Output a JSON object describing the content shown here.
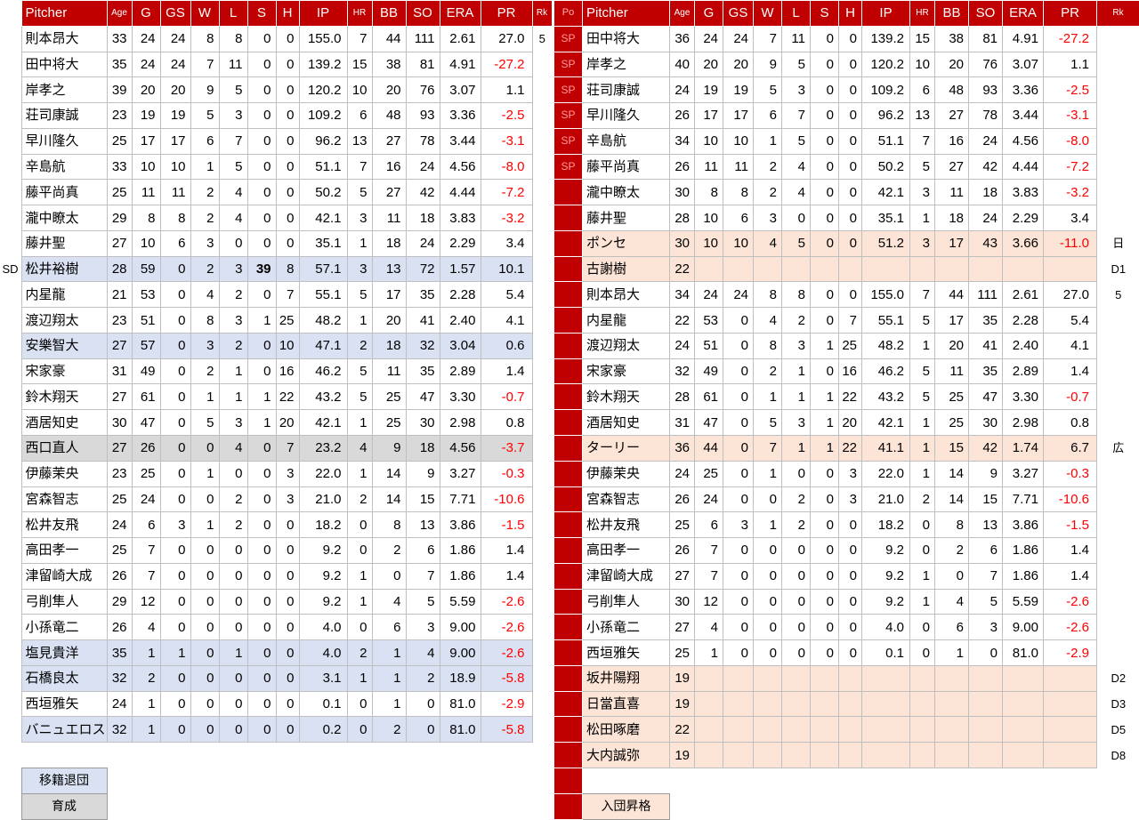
{
  "colors": {
    "header_bg": "#C00000",
    "header_text": "#FFFFFF",
    "po_text": "#FF9A9A",
    "transfer_bg": "#D9E1F2",
    "develop_bg": "#D9D9D9",
    "join_bg": "#FCE4D6",
    "negative": "#FF0000",
    "grid": "#BFBFBF"
  },
  "left_table": {
    "header": [
      "Pitcher",
      "Age",
      "G",
      "GS",
      "W",
      "L",
      "S",
      "H",
      "IP",
      "HR",
      "BB",
      "SO",
      "ERA",
      "PR"
    ],
    "rk_header": "Rk",
    "rows": [
      {
        "c": [
          "則本昂大",
          "33",
          "24",
          "24",
          "8",
          "8",
          "0",
          "0",
          "155.0",
          "7",
          "44",
          "111",
          "2.61",
          "27.0"
        ],
        "rk": "5"
      },
      {
        "c": [
          "田中将大",
          "35",
          "24",
          "24",
          "7",
          "11",
          "0",
          "0",
          "139.2",
          "15",
          "38",
          "81",
          "4.91",
          "-27.2"
        ]
      },
      {
        "c": [
          "岸孝之",
          "39",
          "20",
          "20",
          "9",
          "5",
          "0",
          "0",
          "120.2",
          "10",
          "20",
          "76",
          "3.07",
          "1.1"
        ]
      },
      {
        "c": [
          "荘司康誠",
          "23",
          "19",
          "19",
          "5",
          "3",
          "0",
          "0",
          "109.2",
          "6",
          "48",
          "93",
          "3.36",
          "-2.5"
        ]
      },
      {
        "c": [
          "早川隆久",
          "25",
          "17",
          "17",
          "6",
          "7",
          "0",
          "0",
          "96.2",
          "13",
          "27",
          "78",
          "3.44",
          "-3.1"
        ]
      },
      {
        "c": [
          "辛島航",
          "33",
          "10",
          "10",
          "1",
          "5",
          "0",
          "0",
          "51.1",
          "7",
          "16",
          "24",
          "4.56",
          "-8.0"
        ]
      },
      {
        "c": [
          "藤平尚真",
          "25",
          "11",
          "11",
          "2",
          "4",
          "0",
          "0",
          "50.2",
          "5",
          "27",
          "42",
          "4.44",
          "-7.2"
        ]
      },
      {
        "c": [
          "瀧中瞭太",
          "29",
          "8",
          "8",
          "2",
          "4",
          "0",
          "0",
          "42.1",
          "3",
          "11",
          "18",
          "3.83",
          "-3.2"
        ]
      },
      {
        "c": [
          "藤井聖",
          "27",
          "10",
          "6",
          "3",
          "0",
          "0",
          "0",
          "35.1",
          "1",
          "18",
          "24",
          "2.29",
          "3.4"
        ]
      },
      {
        "m": "SD",
        "hl": "t",
        "b": 6,
        "c": [
          "松井裕樹",
          "28",
          "59",
          "0",
          "2",
          "3",
          "39",
          "8",
          "57.1",
          "3",
          "13",
          "72",
          "1.57",
          "10.1"
        ]
      },
      {
        "c": [
          "内星龍",
          "21",
          "53",
          "0",
          "4",
          "2",
          "0",
          "7",
          "55.1",
          "5",
          "17",
          "35",
          "2.28",
          "5.4"
        ]
      },
      {
        "c": [
          "渡辺翔太",
          "23",
          "51",
          "0",
          "8",
          "3",
          "1",
          "25",
          "48.2",
          "1",
          "20",
          "41",
          "2.40",
          "4.1"
        ]
      },
      {
        "hl": "t",
        "c": [
          "安樂智大",
          "27",
          "57",
          "0",
          "3",
          "2",
          "0",
          "10",
          "47.1",
          "2",
          "18",
          "32",
          "3.04",
          "0.6"
        ]
      },
      {
        "c": [
          "宋家豪",
          "31",
          "49",
          "0",
          "2",
          "1",
          "0",
          "16",
          "46.2",
          "5",
          "11",
          "35",
          "2.89",
          "1.4"
        ]
      },
      {
        "c": [
          "鈴木翔天",
          "27",
          "61",
          "0",
          "1",
          "1",
          "1",
          "22",
          "43.2",
          "5",
          "25",
          "47",
          "3.30",
          "-0.7"
        ]
      },
      {
        "c": [
          "酒居知史",
          "30",
          "47",
          "0",
          "5",
          "3",
          "1",
          "20",
          "42.1",
          "1",
          "25",
          "30",
          "2.98",
          "0.8"
        ]
      },
      {
        "hl": "d",
        "c": [
          "西口直人",
          "27",
          "26",
          "0",
          "0",
          "4",
          "0",
          "7",
          "23.2",
          "4",
          "9",
          "18",
          "4.56",
          "-3.7"
        ]
      },
      {
        "c": [
          "伊藤茉央",
          "23",
          "25",
          "0",
          "1",
          "0",
          "0",
          "3",
          "22.0",
          "1",
          "14",
          "9",
          "3.27",
          "-0.3"
        ]
      },
      {
        "c": [
          "宮森智志",
          "25",
          "24",
          "0",
          "0",
          "2",
          "0",
          "3",
          "21.0",
          "2",
          "14",
          "15",
          "7.71",
          "-10.6"
        ]
      },
      {
        "c": [
          "松井友飛",
          "24",
          "6",
          "3",
          "1",
          "2",
          "0",
          "0",
          "18.2",
          "0",
          "8",
          "13",
          "3.86",
          "-1.5"
        ]
      },
      {
        "c": [
          "高田孝一",
          "25",
          "7",
          "0",
          "0",
          "0",
          "0",
          "0",
          "9.2",
          "0",
          "2",
          "6",
          "1.86",
          "1.4"
        ]
      },
      {
        "c": [
          "津留崎大成",
          "26",
          "7",
          "0",
          "0",
          "0",
          "0",
          "0",
          "9.2",
          "1",
          "0",
          "7",
          "1.86",
          "1.4"
        ]
      },
      {
        "c": [
          "弓削隼人",
          "29",
          "12",
          "0",
          "0",
          "0",
          "0",
          "0",
          "9.2",
          "1",
          "4",
          "5",
          "5.59",
          "-2.6"
        ]
      },
      {
        "c": [
          "小孫竜二",
          "26",
          "4",
          "0",
          "0",
          "0",
          "0",
          "0",
          "4.0",
          "0",
          "6",
          "3",
          "9.00",
          "-2.6"
        ]
      },
      {
        "hl": "t",
        "c": [
          "塩見貴洋",
          "35",
          "1",
          "1",
          "0",
          "1",
          "0",
          "0",
          "4.0",
          "2",
          "1",
          "4",
          "9.00",
          "-2.6"
        ]
      },
      {
        "hl": "t",
        "c": [
          "石橋良太",
          "32",
          "2",
          "0",
          "0",
          "0",
          "0",
          "0",
          "3.1",
          "1",
          "1",
          "2",
          "18.9",
          "-5.8"
        ]
      },
      {
        "c": [
          "西垣雅矢",
          "24",
          "1",
          "0",
          "0",
          "0",
          "0",
          "0",
          "0.1",
          "0",
          "1",
          "0",
          "81.0",
          "-2.9"
        ]
      },
      {
        "hl": "t",
        "c": [
          "バニュエロス",
          "32",
          "1",
          "0",
          "0",
          "0",
          "0",
          "0",
          "0.2",
          "0",
          "2",
          "0",
          "81.0",
          "-5.8"
        ]
      }
    ],
    "legend": [
      {
        "key": "transfer",
        "label": "移籍退団",
        "hl": "t"
      },
      {
        "key": "develop",
        "label": "育成",
        "hl": "d"
      }
    ]
  },
  "right_table": {
    "po_header": "Po",
    "header": [
      "Pitcher",
      "Age",
      "G",
      "GS",
      "W",
      "L",
      "S",
      "H",
      "IP",
      "HR",
      "BB",
      "SO",
      "ERA",
      "PR"
    ],
    "rk_header": "Rk",
    "rows": [
      {
        "po": "SP",
        "c": [
          "田中将大",
          "36",
          "24",
          "24",
          "7",
          "11",
          "0",
          "0",
          "139.2",
          "15",
          "38",
          "81",
          "4.91",
          "-27.2"
        ]
      },
      {
        "po": "SP",
        "c": [
          "岸孝之",
          "40",
          "20",
          "20",
          "9",
          "5",
          "0",
          "0",
          "120.2",
          "10",
          "20",
          "76",
          "3.07",
          "1.1"
        ]
      },
      {
        "po": "SP",
        "c": [
          "荘司康誠",
          "24",
          "19",
          "19",
          "5",
          "3",
          "0",
          "0",
          "109.2",
          "6",
          "48",
          "93",
          "3.36",
          "-2.5"
        ]
      },
      {
        "po": "SP",
        "c": [
          "早川隆久",
          "26",
          "17",
          "17",
          "6",
          "7",
          "0",
          "0",
          "96.2",
          "13",
          "27",
          "78",
          "3.44",
          "-3.1"
        ]
      },
      {
        "po": "SP",
        "c": [
          "辛島航",
          "34",
          "10",
          "10",
          "1",
          "5",
          "0",
          "0",
          "51.1",
          "7",
          "16",
          "24",
          "4.56",
          "-8.0"
        ]
      },
      {
        "po": "SP",
        "c": [
          "藤平尚真",
          "26",
          "11",
          "11",
          "2",
          "4",
          "0",
          "0",
          "50.2",
          "5",
          "27",
          "42",
          "4.44",
          "-7.2"
        ]
      },
      {
        "c": [
          "瀧中瞭太",
          "30",
          "8",
          "8",
          "2",
          "4",
          "0",
          "0",
          "42.1",
          "3",
          "11",
          "18",
          "3.83",
          "-3.2"
        ]
      },
      {
        "c": [
          "藤井聖",
          "28",
          "10",
          "6",
          "3",
          "0",
          "0",
          "0",
          "35.1",
          "1",
          "18",
          "24",
          "2.29",
          "3.4"
        ]
      },
      {
        "hl": "j",
        "rk": "日",
        "c": [
          "ポンセ",
          "30",
          "10",
          "10",
          "4",
          "5",
          "0",
          "0",
          "51.2",
          "3",
          "17",
          "43",
          "3.66",
          "-11.0"
        ]
      },
      {
        "hl": "j",
        "rk": "D1",
        "c": [
          "古謝樹",
          "22",
          "",
          "",
          "",
          "",
          "",
          "",
          "",
          "",
          "",
          "",
          "",
          ""
        ]
      },
      {
        "rk": "5",
        "c": [
          "則本昂大",
          "34",
          "24",
          "24",
          "8",
          "8",
          "0",
          "0",
          "155.0",
          "7",
          "44",
          "111",
          "2.61",
          "27.0"
        ]
      },
      {
        "c": [
          "内星龍",
          "22",
          "53",
          "0",
          "4",
          "2",
          "0",
          "7",
          "55.1",
          "5",
          "17",
          "35",
          "2.28",
          "5.4"
        ]
      },
      {
        "c": [
          "渡辺翔太",
          "24",
          "51",
          "0",
          "8",
          "3",
          "1",
          "25",
          "48.2",
          "1",
          "20",
          "41",
          "2.40",
          "4.1"
        ]
      },
      {
        "c": [
          "宋家豪",
          "32",
          "49",
          "0",
          "2",
          "1",
          "0",
          "16",
          "46.2",
          "5",
          "11",
          "35",
          "2.89",
          "1.4"
        ]
      },
      {
        "c": [
          "鈴木翔天",
          "28",
          "61",
          "0",
          "1",
          "1",
          "1",
          "22",
          "43.2",
          "5",
          "25",
          "47",
          "3.30",
          "-0.7"
        ]
      },
      {
        "c": [
          "酒居知史",
          "31",
          "47",
          "0",
          "5",
          "3",
          "1",
          "20",
          "42.1",
          "1",
          "25",
          "30",
          "2.98",
          "0.8"
        ]
      },
      {
        "hl": "j",
        "rk": "広",
        "c": [
          "ターリー",
          "36",
          "44",
          "0",
          "7",
          "1",
          "1",
          "22",
          "41.1",
          "1",
          "15",
          "42",
          "1.74",
          "6.7"
        ]
      },
      {
        "c": [
          "伊藤茉央",
          "24",
          "25",
          "0",
          "1",
          "0",
          "0",
          "3",
          "22.0",
          "1",
          "14",
          "9",
          "3.27",
          "-0.3"
        ]
      },
      {
        "c": [
          "宮森智志",
          "26",
          "24",
          "0",
          "0",
          "2",
          "0",
          "3",
          "21.0",
          "2",
          "14",
          "15",
          "7.71",
          "-10.6"
        ]
      },
      {
        "c": [
          "松井友飛",
          "25",
          "6",
          "3",
          "1",
          "2",
          "0",
          "0",
          "18.2",
          "0",
          "8",
          "13",
          "3.86",
          "-1.5"
        ]
      },
      {
        "c": [
          "高田孝一",
          "26",
          "7",
          "0",
          "0",
          "0",
          "0",
          "0",
          "9.2",
          "0",
          "2",
          "6",
          "1.86",
          "1.4"
        ]
      },
      {
        "c": [
          "津留崎大成",
          "27",
          "7",
          "0",
          "0",
          "0",
          "0",
          "0",
          "9.2",
          "1",
          "0",
          "7",
          "1.86",
          "1.4"
        ]
      },
      {
        "c": [
          "弓削隼人",
          "30",
          "12",
          "0",
          "0",
          "0",
          "0",
          "0",
          "9.2",
          "1",
          "4",
          "5",
          "5.59",
          "-2.6"
        ]
      },
      {
        "c": [
          "小孫竜二",
          "27",
          "4",
          "0",
          "0",
          "0",
          "0",
          "0",
          "4.0",
          "0",
          "6",
          "3",
          "9.00",
          "-2.6"
        ]
      },
      {
        "c": [
          "西垣雅矢",
          "25",
          "1",
          "0",
          "0",
          "0",
          "0",
          "0",
          "0.1",
          "0",
          "1",
          "0",
          "81.0",
          "-2.9"
        ]
      },
      {
        "hl": "j",
        "rk": "D2",
        "c": [
          "坂井陽翔",
          "19",
          "",
          "",
          "",
          "",
          "",
          "",
          "",
          "",
          "",
          "",
          "",
          ""
        ]
      },
      {
        "hl": "j",
        "rk": "D3",
        "c": [
          "日當直喜",
          "19",
          "",
          "",
          "",
          "",
          "",
          "",
          "",
          "",
          "",
          "",
          "",
          ""
        ]
      },
      {
        "hl": "j",
        "rk": "D5",
        "c": [
          "松田啄磨",
          "22",
          "",
          "",
          "",
          "",
          "",
          "",
          "",
          "",
          "",
          "",
          "",
          ""
        ]
      },
      {
        "hl": "j",
        "rk": "D8",
        "c": [
          "大内誠弥",
          "19",
          "",
          "",
          "",
          "",
          "",
          "",
          "",
          "",
          "",
          "",
          "",
          ""
        ]
      }
    ],
    "legend": [
      {
        "key": "join",
        "label": "入団昇格",
        "hl": "j"
      }
    ]
  }
}
